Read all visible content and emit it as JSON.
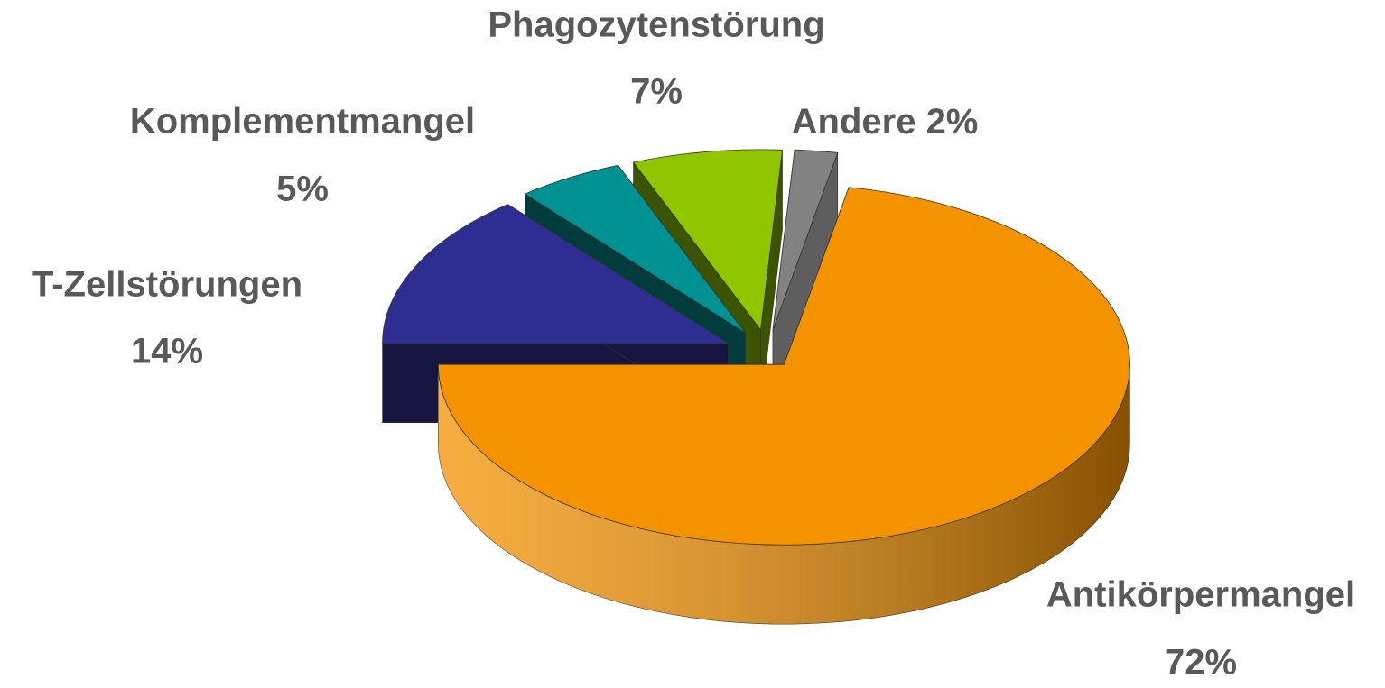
{
  "chart_data": {
    "type": "pie",
    "categories": [
      "Antikörpermangel",
      "T-Zellstörungen",
      "Komplementmangel",
      "Phagozytenstörung",
      "Andere"
    ],
    "values": [
      72,
      14,
      5,
      7,
      2
    ],
    "value_labels": [
      "72%",
      "14%",
      "5%",
      "7%",
      "2%"
    ],
    "colors": [
      "#f59200",
      "#2e2e92",
      "#009292",
      "#90c600",
      "#828282"
    ],
    "side_colors": [
      "#8a5200",
      "#151540",
      "#003c3c",
      "#3c5400",
      "#5e5e5e"
    ]
  }
}
